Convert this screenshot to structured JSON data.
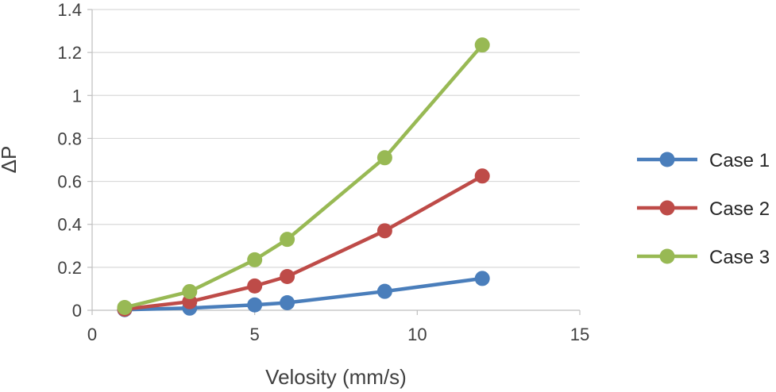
{
  "chart_data": {
    "type": "line",
    "title": "",
    "xlabel": "Velosity (mm/s)",
    "ylabel": "ΔP",
    "xlim": [
      0,
      15
    ],
    "ylim": [
      0,
      1.4
    ],
    "xticks": [
      0,
      5,
      10,
      15
    ],
    "yticks": [
      0,
      0.2,
      0.4,
      0.6,
      0.8,
      1,
      1.2,
      1.4
    ],
    "xtick_labels": [
      "0",
      "5",
      "10",
      "15"
    ],
    "ytick_labels": [
      "0",
      "0.2",
      "0.4",
      "0.6",
      "0.8",
      "1",
      "1.2",
      "1.4"
    ],
    "grid": true,
    "legend_position": "right",
    "series": [
      {
        "name": "Case 1",
        "color": "#4a7ebb",
        "x": [
          1,
          3,
          5,
          6,
          9,
          12
        ],
        "y": [
          0.003,
          0.01,
          0.025,
          0.035,
          0.088,
          0.148
        ]
      },
      {
        "name": "Case 2",
        "color": "#be4b48",
        "x": [
          1,
          3,
          5,
          6,
          9,
          12
        ],
        "y": [
          0.005,
          0.04,
          0.113,
          0.157,
          0.37,
          0.625
        ]
      },
      {
        "name": "Case 3",
        "color": "#98b954",
        "x": [
          1,
          3,
          5,
          6,
          9,
          12
        ],
        "y": [
          0.013,
          0.087,
          0.235,
          0.33,
          0.71,
          1.235
        ]
      }
    ]
  }
}
